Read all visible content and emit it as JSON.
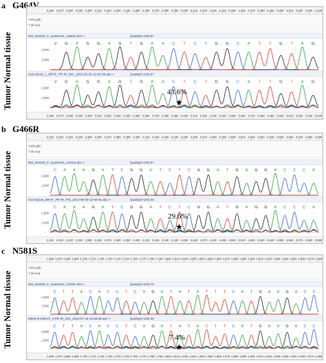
{
  "panels": [
    {
      "letter": "a",
      "mutation": "G464V",
      "side_label": "Tumor Normal tissue",
      "ruler_ticks": [
        "2,260",
        "2,270",
        "2,280",
        "2,290",
        "2,300",
        "2,310",
        "2,320",
        "2,330",
        "2,340",
        "2,350",
        "2,360",
        "2,370",
        "2,380",
        "2,390",
        "2,400",
        "2,410",
        "2,420",
        "2,430",
        "2,440",
        "2,450",
        "2,460",
        "2,470",
        "2,480",
        "2,490",
        "2,500",
        "2,510",
        "2,520",
        "2,530",
        "2,540"
      ],
      "normal_track": "NM_004333_P_Synthesis_145634.ab1->",
      "normal_quality": "Quality(0-100):97",
      "tumor_track": "S19-25162_L_BRAF_PR-IR_D01_2013-05-09-12-59-39.ab1->",
      "tumor_quality": "Quality(0-100):97",
      "bases": "VGAGGAGTGAACTCTGGCATTGTAG",
      "percent": "43.6%",
      "star": "★"
    },
    {
      "letter": "b",
      "mutation": "G466R",
      "side_label": "Tumor Normal tissue",
      "ruler_ticks": [
        "2,310",
        "2,320",
        "2,330",
        "2,340",
        "2,350",
        "2,360",
        "2,370",
        "2,380",
        "2,390",
        "2,400",
        "2,410",
        "2,420",
        "2,430",
        "2,440",
        "2,450",
        "2,460",
        "2,470",
        "2,480",
        "2,490",
        "2,500",
        "2,510",
        "2,520",
        "2,530",
        "2,540",
        "2,550",
        "2,560",
        "2,570",
        "2,580",
        "2,590"
      ],
      "normal_track": "NM_004333_P_Synthesis_143116.ab1->",
      "normal_quality": "Quality(0-100):97",
      "tumor_track": "S13-5(2)44_BRAF_PR-IR_F01_2013-05-09-12-58-56.ab1->",
      "tumor_quality": "Quality(0-100):49",
      "bases": "CAAAGATCGGATCTCGGATGAGGACCCA",
      "percent": "29.6%",
      "star": "★"
    },
    {
      "letter": "c",
      "mutation": "N581S",
      "side_label": "Tumor Normal tissue",
      "ruler_ticks": [
        "1,660",
        "1,670",
        "1,680",
        "1,690",
        "1,700",
        "1,710",
        "1,720",
        "1,730",
        "1,740",
        "1,750",
        "1,760",
        "1,770",
        "1,780",
        "1,790",
        "1,800",
        "1,810",
        "1,820",
        "1,830",
        "1,840",
        "1,850",
        "1,860",
        "1,870",
        "1,880",
        "1,890",
        "1,900",
        "1,910",
        "1,920",
        "1,930",
        "1,940",
        "1,950",
        "1,960",
        "1,970",
        "1,980"
      ],
      "normal_track": "NM_004333_P_Synthesis_175397.ab1->",
      "normal_quality": "Quality(0-100):76",
      "tumor_track": "M006-3nt-BRAF_2-PE-IR_D01_2013-07-16-13-56-59.ab1->",
      "tumor_quality": "Quality(0-100):28",
      "bases": "CTTACACCTCAGATATATTTCATGAAGACC",
      "percent": "7.4%",
      "star": "★"
    }
  ],
  "common": {
    "ruler_side_a": "?333.gbk",
    "ruler_side_b": "?.35.seq",
    "yticks": [
      "6,000",
      "5,000",
      "4,000",
      "3,000",
      "2,000",
      "1,000"
    ],
    "yticks_short": [
      "2,000",
      "1,000"
    ],
    "base_colors": {
      "A": "#2ea03c",
      "C": "#2f5fd0",
      "G": "#222222",
      "T": "#d63a2c"
    }
  }
}
